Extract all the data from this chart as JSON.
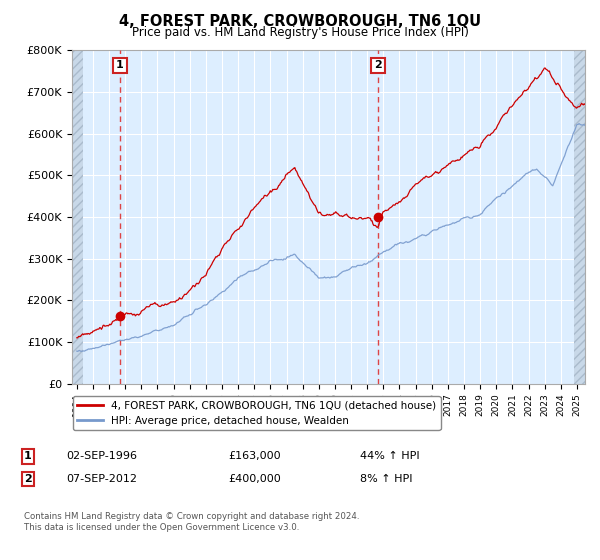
{
  "title": "4, FOREST PARK, CROWBOROUGH, TN6 1QU",
  "subtitle": "Price paid vs. HM Land Registry's House Price Index (HPI)",
  "ylim": [
    0,
    800000
  ],
  "yticks": [
    0,
    100000,
    200000,
    300000,
    400000,
    500000,
    600000,
    700000,
    800000
  ],
  "ytick_labels": [
    "£0",
    "£100K",
    "£200K",
    "£300K",
    "£400K",
    "£500K",
    "£600K",
    "£700K",
    "£800K"
  ],
  "hpi_color": "#7799cc",
  "price_color": "#cc0000",
  "marker_color": "#cc0000",
  "dashed_line_color": "#dd4444",
  "sale1_year": 1996.67,
  "sale1_price": 163000,
  "sale2_year": 2012.67,
  "sale2_price": 400000,
  "legend_entry1": "4, FOREST PARK, CROWBOROUGH, TN6 1QU (detached house)",
  "legend_entry2": "HPI: Average price, detached house, Wealden",
  "note1_date": "02-SEP-1996",
  "note1_price": "£163,000",
  "note1_hpi": "44% ↑ HPI",
  "note2_date": "07-SEP-2012",
  "note2_price": "£400,000",
  "note2_hpi": "8% ↑ HPI",
  "footer": "Contains HM Land Registry data © Crown copyright and database right 2024.\nThis data is licensed under the Open Government Licence v3.0.",
  "chart_bg": "#ddeeff",
  "grid_color": "#ffffff",
  "xstart": 1994,
  "xend": 2025
}
